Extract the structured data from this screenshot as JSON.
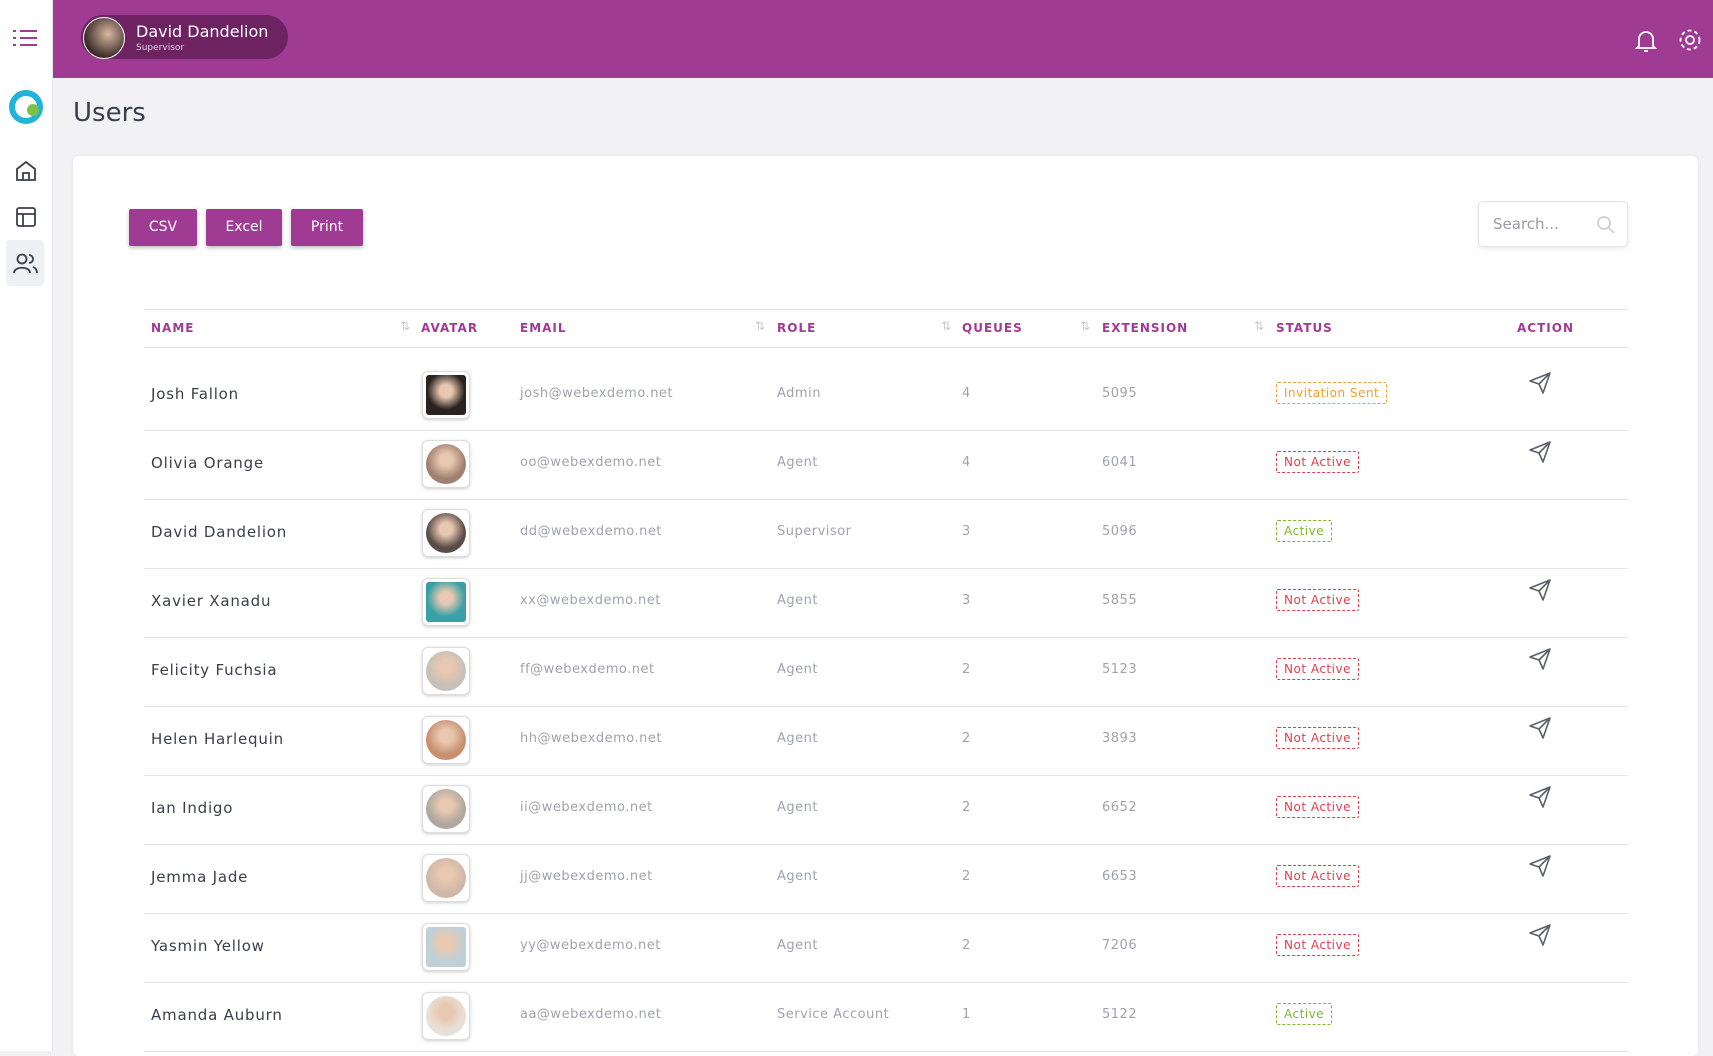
{
  "header": {
    "user_name": "David Dandelion",
    "user_role": "Supervisor"
  },
  "page_title": "Users",
  "toolbar": {
    "buttons": [
      "CSV",
      "Excel",
      "Print"
    ],
    "search_placeholder": "Search..."
  },
  "table": {
    "columns": [
      "NAME",
      "AVATAR",
      "EMAIL",
      "ROLE",
      "QUEUES",
      "EXTENSION",
      "STATUS",
      "ACTION"
    ],
    "rows": [
      [
        "Josh Fallon",
        "josh@webexdemo.net",
        "Admin",
        4,
        5095,
        "Invitation Sent"
      ],
      [
        "Olivia Orange",
        "oo@webexdemo.net",
        "Agent",
        4,
        6041,
        "Not Active"
      ],
      [
        "David Dandelion",
        "dd@webexdemo.net",
        "Supervisor",
        3,
        5096,
        "Active"
      ],
      [
        "Xavier Xanadu",
        "xx@webexdemo.net",
        "Agent",
        3,
        5855,
        "Not Active"
      ],
      [
        "Felicity Fuchsia",
        "ff@webexdemo.net",
        "Agent",
        2,
        5123,
        "Not Active"
      ],
      [
        "Helen Harlequin",
        "hh@webexdemo.net",
        "Agent",
        2,
        3893,
        "Not Active"
      ],
      [
        "Ian Indigo",
        "ii@webexdemo.net",
        "Agent",
        2,
        6652,
        "Not Active"
      ],
      [
        "Jemma Jade",
        "jj@webexdemo.net",
        "Agent",
        2,
        6653,
        "Not Active"
      ],
      [
        "Yasmin Yellow",
        "yy@webexdemo.net",
        "Agent",
        2,
        7206,
        "Not Active"
      ],
      [
        "Amanda Auburn",
        "aa@webexdemo.net",
        "Service Account",
        1,
        5122,
        "Active"
      ]
    ]
  }
}
